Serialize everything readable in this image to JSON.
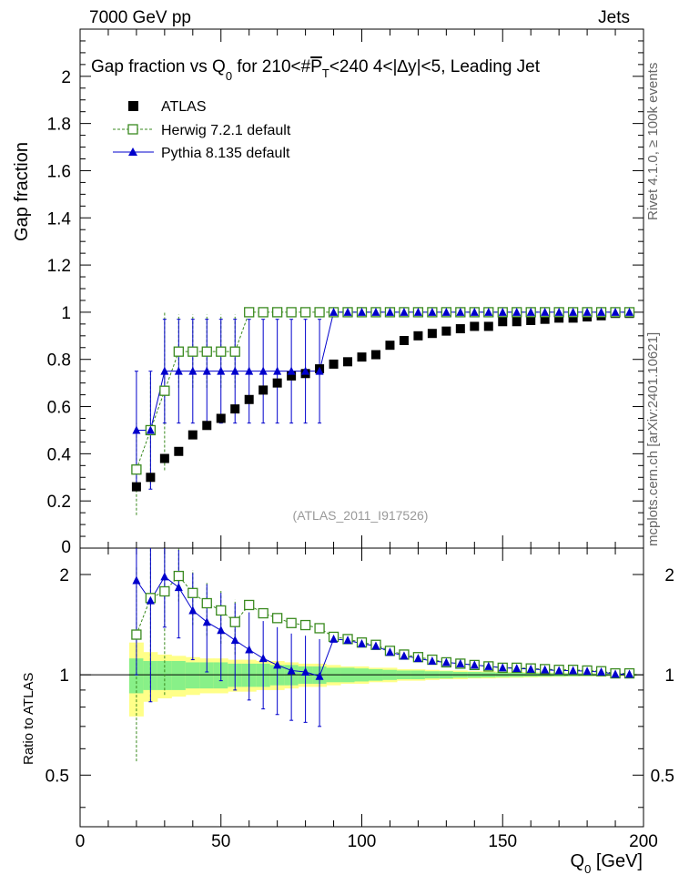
{
  "header": {
    "left": "7000 GeV pp",
    "right": "Jets"
  },
  "side": {
    "rivet": "Rivet 4.1.0, ≥ 100k events",
    "source": "mcplots.cern.ch [arXiv:2401.10621]"
  },
  "colors": {
    "atlas": "#000000",
    "herwig": "#3a8a1f",
    "pythia": "#0000cc",
    "band_inner": "#88f088",
    "band_outer": "#ffff88"
  },
  "chart_data": [
    {
      "type": "scatter",
      "title": "Gap fraction vs Q",
      "title_sub": "0",
      "title_mid": " for 210<#",
      "title_pt": "P",
      "title_pt_sub": "T",
      "title_rest": "<240  4<|∆y|<5, Leading Jet",
      "ylabel": "Gap fraction",
      "watermark": "(ATLAS_2011_I917526)",
      "xlim": [
        0,
        200
      ],
      "ylim": [
        0,
        2.2
      ],
      "yticks": [
        "0.2",
        "0.4",
        "0.6",
        "0.8",
        "1",
        "1.2",
        "1.4",
        "1.6",
        "1.8",
        "2"
      ],
      "yticks_zero": "0",
      "legend": [
        "ATLAS",
        "Herwig 7.2.1 default",
        "Pythia 8.135 default"
      ],
      "x": [
        20,
        25,
        30,
        35,
        40,
        45,
        50,
        55,
        60,
        65,
        70,
        75,
        80,
        85,
        90,
        95,
        100,
        105,
        110,
        115,
        120,
        125,
        130,
        135,
        140,
        145,
        150,
        155,
        160,
        165,
        170,
        175,
        180,
        185,
        190,
        195
      ],
      "series": [
        {
          "name": "ATLAS",
          "values": [
            0.26,
            0.3,
            0.38,
            0.41,
            0.48,
            0.52,
            0.55,
            0.59,
            0.63,
            0.67,
            0.7,
            0.73,
            0.74,
            0.76,
            0.78,
            0.79,
            0.81,
            0.82,
            0.86,
            0.88,
            0.9,
            0.91,
            0.92,
            0.93,
            0.94,
            0.94,
            0.96,
            0.96,
            0.965,
            0.97,
            0.975,
            0.975,
            0.98,
            0.985,
            0.995,
            0.995
          ]
        },
        {
          "name": "Herwig 7.2.1 default",
          "values": [
            0.333,
            0.5,
            0.667,
            0.833,
            0.833,
            0.833,
            0.833,
            0.833,
            1,
            1,
            1,
            1,
            1,
            1,
            1,
            1,
            1,
            1,
            1,
            1,
            1,
            1,
            1,
            1,
            1,
            1,
            1,
            1,
            1,
            1,
            1,
            1,
            1,
            1,
            1,
            1
          ],
          "err_x": [
            20,
            25,
            30,
            35,
            40,
            45,
            50,
            55
          ],
          "err_lo": [
            0.14,
            0.25,
            0.33,
            0.68,
            0.68,
            0.68,
            0.68,
            0.68
          ],
          "err_hi": [
            0.53,
            0.75,
            1.0,
            0.99,
            0.99,
            0.99,
            0.99,
            0.99
          ]
        },
        {
          "name": "Pythia 8.135 default",
          "values": [
            0.5,
            0.5,
            0.75,
            0.75,
            0.75,
            0.75,
            0.75,
            0.75,
            0.75,
            0.75,
            0.75,
            0.75,
            0.75,
            0.75,
            1,
            1,
            1,
            1,
            1,
            1,
            1,
            1,
            1,
            1,
            1,
            1,
            1,
            1,
            1,
            1,
            1,
            1,
            1,
            1,
            1,
            1
          ],
          "err_x": [
            20,
            25,
            30,
            35,
            40,
            45,
            50,
            55,
            60,
            65,
            70,
            75,
            80,
            85
          ],
          "err_lo": [
            0.25,
            0.25,
            0.53,
            0.53,
            0.53,
            0.53,
            0.53,
            0.53,
            0.53,
            0.53,
            0.53,
            0.53,
            0.53,
            0.53
          ],
          "err_hi": [
            0.75,
            0.75,
            0.97,
            0.97,
            0.97,
            0.97,
            0.97,
            0.97,
            0.97,
            0.97,
            0.97,
            0.97,
            0.97,
            0.97
          ]
        }
      ]
    },
    {
      "type": "scatter",
      "ylabel": "Ratio to ATLAS",
      "xlabel": "Q",
      "xlabel_sub": "0",
      "xlabel_unit": " [GeV]",
      "xlim": [
        0,
        200
      ],
      "ylim": [
        0.35,
        2.4
      ],
      "yscale": "log",
      "xticks": [
        "0",
        "50",
        "100",
        "150",
        "200"
      ],
      "yticks": [
        "0.5",
        "1",
        "2"
      ],
      "x": [
        20,
        25,
        30,
        35,
        40,
        45,
        50,
        55,
        60,
        65,
        70,
        75,
        80,
        85,
        90,
        95,
        100,
        105,
        110,
        115,
        120,
        125,
        130,
        135,
        140,
        145,
        150,
        155,
        160,
        165,
        170,
        175,
        180,
        185,
        190,
        195
      ],
      "band_inner": [
        0.12,
        0.1,
        0.1,
        0.1,
        0.09,
        0.09,
        0.09,
        0.08,
        0.08,
        0.08,
        0.07,
        0.07,
        0.06,
        0.06,
        0.05,
        0.05,
        0.045,
        0.04,
        0.035,
        0.03,
        0.03,
        0.025,
        0.025,
        0.02,
        0.02,
        0.018,
        0.016,
        0.015,
        0.013,
        0.012,
        0.011,
        0.01,
        0.009,
        0.008,
        0.007,
        0.006
      ],
      "band_outer": [
        0.25,
        0.17,
        0.15,
        0.14,
        0.13,
        0.12,
        0.12,
        0.11,
        0.11,
        0.1,
        0.1,
        0.09,
        0.08,
        0.08,
        0.07,
        0.06,
        0.06,
        0.05,
        0.05,
        0.04,
        0.04,
        0.035,
        0.03,
        0.03,
        0.025,
        0.025,
        0.022,
        0.02,
        0.018,
        0.016,
        0.014,
        0.012,
        0.011,
        0.01,
        0.009,
        0.008
      ],
      "series": [
        {
          "name": "Herwig 7.2.1 default",
          "values": [
            1.32,
            1.7,
            1.78,
            1.98,
            1.76,
            1.64,
            1.56,
            1.44,
            1.62,
            1.53,
            1.48,
            1.43,
            1.41,
            1.38,
            1.3,
            1.28,
            1.25,
            1.23,
            1.18,
            1.15,
            1.13,
            1.11,
            1.09,
            1.08,
            1.07,
            1.06,
            1.05,
            1.05,
            1.045,
            1.04,
            1.035,
            1.035,
            1.03,
            1.025,
            1.01,
            1.01
          ],
          "err_x": [
            20,
            25,
            30,
            35,
            40,
            45,
            50,
            55
          ],
          "err_lo": [
            0.55,
            0.83,
            0.87,
            1.66,
            1.41,
            1.31,
            1.24,
            1.15
          ],
          "err_hi": [
            2.1,
            2.5,
            2.63,
            2.41,
            2.06,
            1.9,
            1.8,
            1.68
          ]
        },
        {
          "name": "Pythia 8.135 default",
          "values": [
            1.92,
            1.67,
            1.97,
            1.83,
            1.56,
            1.44,
            1.36,
            1.27,
            1.19,
            1.12,
            1.07,
            1.03,
            1.02,
            0.99,
            1.28,
            1.27,
            1.24,
            1.22,
            1.17,
            1.14,
            1.12,
            1.1,
            1.09,
            1.08,
            1.07,
            1.06,
            1.05,
            1.045,
            1.04,
            1.035,
            1.03,
            1.03,
            1.025,
            1.02,
            1.005,
            1.005
          ],
          "err_x": [
            20,
            25,
            30,
            35,
            40,
            45,
            50,
            55,
            60,
            65,
            70,
            75,
            80,
            85
          ],
          "err_lo": [
            1.0,
            0.83,
            1.39,
            1.29,
            1.11,
            1.02,
            0.96,
            0.9,
            0.84,
            0.79,
            0.76,
            0.73,
            0.72,
            0.7
          ],
          "err_hi": [
            2.5,
            2.5,
            2.55,
            2.37,
            2.02,
            1.87,
            1.76,
            1.64,
            1.54,
            1.45,
            1.39,
            1.33,
            1.31,
            1.28
          ]
        }
      ]
    }
  ]
}
